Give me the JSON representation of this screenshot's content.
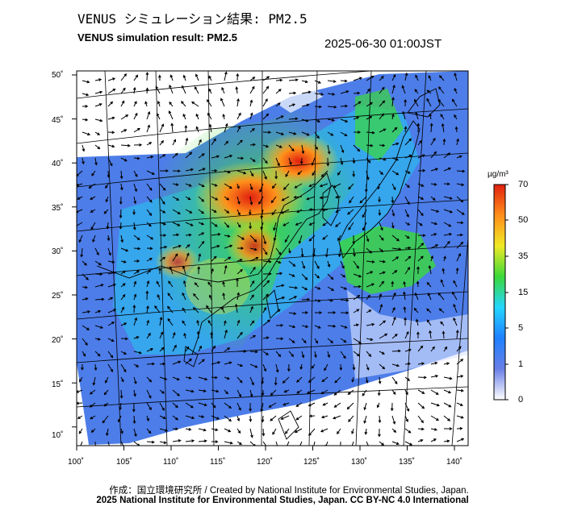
{
  "title_ja": "VENUS シミュレーション結果: PM2.5",
  "title_en": "VENUS simulation result: PM2.5",
  "timestamp": "2025-06-30 01:00JST",
  "lat_labels": [
    "50˚",
    "45˚",
    "40˚",
    "35˚",
    "30˚",
    "25˚",
    "20˚",
    "15˚",
    "10˚"
  ],
  "lon_labels": [
    "100˚",
    "105˚",
    "110˚",
    "115˚",
    "120˚",
    "125˚",
    "130˚",
    "135˚",
    "140˚"
  ],
  "colorbar": {
    "unit": "µg/m³",
    "ticks": [
      "70",
      "50",
      "35",
      "15",
      "5",
      "1",
      "0"
    ],
    "colors": [
      "#ffffff",
      "#6a7fe6",
      "#1e7fff",
      "#24d6ff",
      "#3ad93a",
      "#f0ea25",
      "#ff8f1a",
      "#e02010"
    ]
  },
  "credit_line1": "作成：国立環境研究所 / Created by National Institute for Environmental Studies, Japan.",
  "credit_line2": "2025 National Institute for Environmental Studies, Japan. CC BY-NC 4.0 International"
}
